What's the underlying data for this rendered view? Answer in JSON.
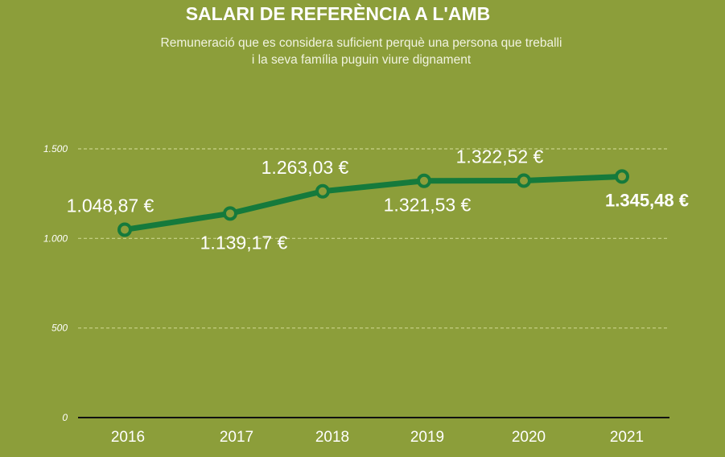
{
  "title": "SALARI DE REFERÈNCIA A L'AMB",
  "subtitle_lines": [
    "Remuneració que es considera suficient perquè una persona que treballi",
    "i la seva família puguin viure dignament"
  ],
  "colors": {
    "background": "#8c9e3a",
    "line": "#157a3c",
    "grid": "#c9d38a",
    "text": "#ffffff",
    "axis": "#111111"
  },
  "chart_data": {
    "type": "line",
    "title": "SALARI DE REFERÈNCIA A L'AMB",
    "subtitle": "Remuneració que es considera suficient perquè una persona que treballi i la seva família puguin viure dignament",
    "x": [
      "2016",
      "2017",
      "2018",
      "2019",
      "2020",
      "2021"
    ],
    "series": [
      {
        "values": [
          1048.87,
          1139.17,
          1263.03,
          1321.53,
          1322.52,
          1345.48
        ],
        "labels": [
          "1.048,87 €",
          "1.139,17 €",
          "1.263,03 €",
          "1.321,53 €",
          "1.322,52 €",
          "1.345,48 €"
        ],
        "label_positions": [
          "above",
          "below",
          "above",
          "below",
          "above",
          "below"
        ],
        "highlight_last": true
      }
    ],
    "y_ticks": [
      0,
      500,
      1000,
      1500
    ],
    "y_tick_labels": [
      "0",
      "500",
      "1.000",
      "1.500"
    ],
    "ylim": [
      0,
      1500
    ],
    "grid": true,
    "legend": "none",
    "xlabel": "",
    "ylabel": ""
  }
}
